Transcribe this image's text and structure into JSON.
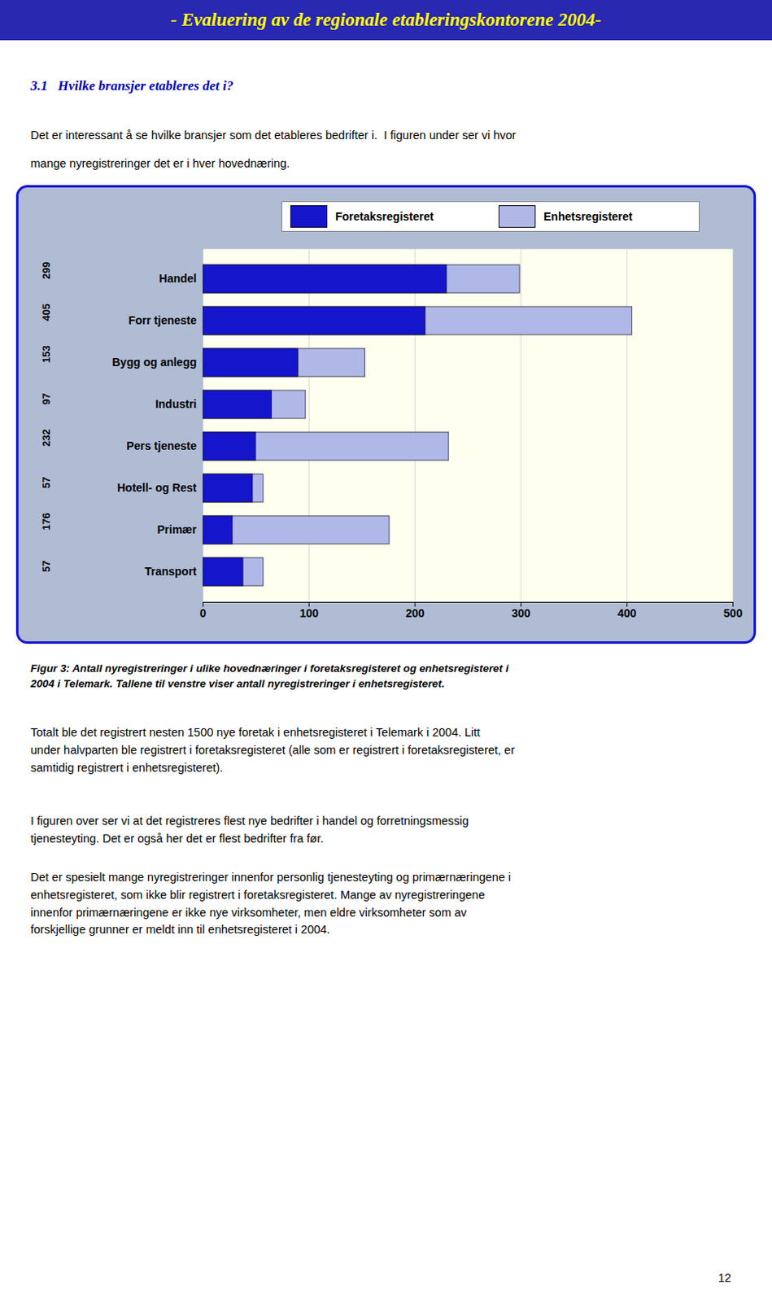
{
  "chart_data": {
    "type": "bar",
    "orientation": "horizontal",
    "stacked": false,
    "title": "- Evaluering av de regionale etableringskontorene 2004-",
    "subtitle": "3.1   Hvilke bransjer etableres det i?",
    "intro": [
      "Det er interessant å se hvilke bransjer som det etableres bedrifter i.  I figuren under ser vi hvor",
      "mange nyregistreringer det er i hver hovednæring."
    ],
    "categories": [
      "Handel",
      "Forr tjeneste",
      "Bygg og anlegg",
      "Industri",
      "Pers tjeneste",
      "Hotell- og Rest",
      "Primær",
      "Transport"
    ],
    "series": [
      {
        "name": "Foretaksregisteret",
        "color": "#1515cc",
        "values": [
          230,
          210,
          90,
          65,
          50,
          47,
          28,
          38
        ]
      },
      {
        "name": "Enhetsregisteret",
        "color": "#b0b8e8",
        "values": [
          299,
          405,
          153,
          97,
          232,
          57,
          176,
          57
        ],
        "data_labels": true
      }
    ],
    "xlim": [
      0,
      500
    ],
    "xticks": [
      0,
      100,
      200,
      300,
      400,
      500
    ],
    "grid": true,
    "legend": "top",
    "caption": "Figur 3: Antall nyregistreringer i ulike hovednæringer i foretaksregisteret og enhetsregisteret i\n2004 i Telemark.   Tallene til venstre viser antall nyregistreringer i enhetsregisteret.",
    "paragraphs": [
      "Totalt ble det registrert nesten 1500 nye foretak i enhetsregisteret i Telemark i 2004.  Litt\nunder halvparten ble registrert i foretaksregisteret (alle som er registrert i foretaksregisteret, er\nsamtidig registrert i enhetsregisteret).",
      "I figuren over ser vi at det registreres flest nye bedrifter i handel og forretningsmessig\ntjenesteyting.  Det er også her det er flest bedrifter fra før.",
      "Det er spesielt mange nyregistreringer innenfor personlig tjenesteyting og primærnæringene i\nenhetsregisteret, som ikke blir registrert i foretaksregisteret.  Mange av nyregistreringene\ninnenfor primærnæringene er ikke nye virksomheter, men eldre virksomheter som av\nforskjellige grunner er meldt inn til enhetsregisteret i 2004."
    ],
    "page_number": "12"
  }
}
